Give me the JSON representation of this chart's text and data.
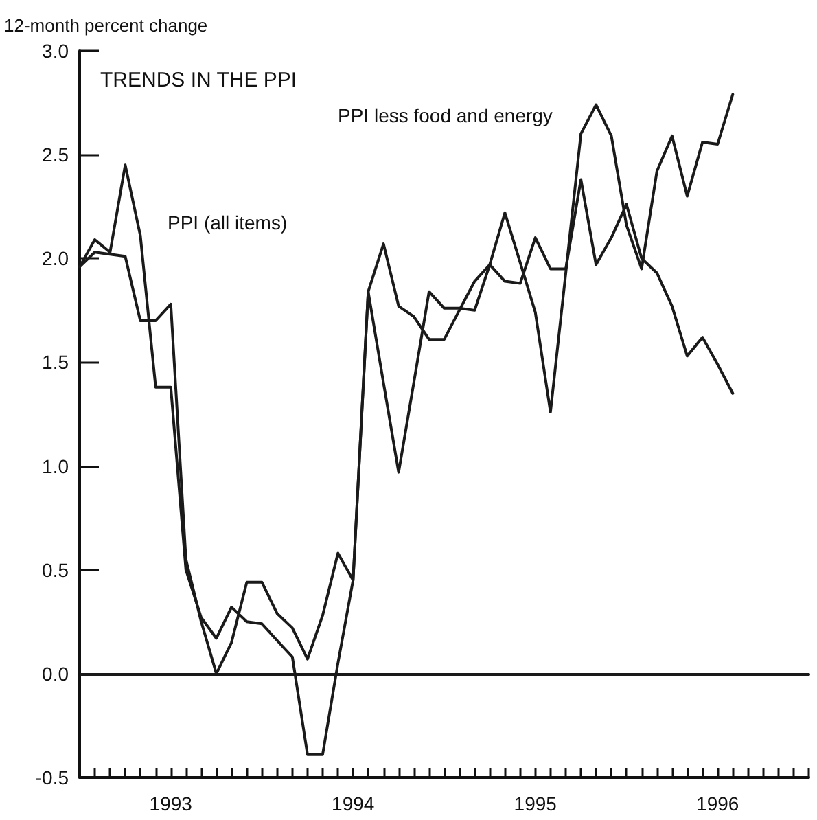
{
  "chart_data": {
    "type": "line",
    "title": "TRENDS IN THE PPI",
    "ylabel": "12-month percent change",
    "annotations": [
      "PPI less food and energy",
      "PPI (all items)"
    ],
    "x": [
      1993,
      1993.083,
      1993.167,
      1993.25,
      1993.333,
      1993.417,
      1993.5,
      1993.583,
      1993.667,
      1993.75,
      1993.833,
      1993.917,
      1994,
      1994.083,
      1994.167,
      1994.25,
      1994.333,
      1994.417,
      1994.5,
      1994.583,
      1994.667,
      1994.75,
      1994.833,
      1994.917,
      1995,
      1995.083,
      1995.167,
      1995.25,
      1995.333,
      1995.417,
      1995.5,
      1995.583,
      1995.667,
      1995.75,
      1995.833,
      1995.917,
      1996,
      1996.083,
      1996.167,
      1996.25,
      1996.333,
      1996.417,
      1996.5,
      1996.583
    ],
    "series": [
      {
        "color": "#1a1a1a",
        "values": [
          1.96,
          2.09,
          2.03,
          2.45,
          2.11,
          1.38,
          1.38,
          0.5,
          0.27,
          0.17,
          0.32,
          0.25,
          0.24,
          0.16,
          0.08,
          -0.39,
          -0.39,
          0.05,
          0.45,
          1.84,
          1.4,
          0.97,
          1.4,
          1.84,
          1.76,
          1.76,
          1.75,
          1.97,
          2.22,
          1.98,
          1.74,
          1.26,
          1.93,
          2.6,
          2.74,
          2.59,
          2.16,
          1.95,
          2.42,
          2.59,
          2.3,
          2.56,
          2.55,
          2.79
        ]
      },
      {
        "color": "#1a1a1a",
        "values": [
          1.96,
          2.03,
          2.02,
          2.01,
          1.7,
          1.7,
          1.78,
          0.55,
          0.25,
          0.0,
          0.15,
          0.44,
          0.44,
          0.29,
          0.22,
          0.07,
          0.28,
          0.58,
          0.45,
          1.84,
          2.07,
          1.77,
          1.72,
          1.61,
          1.61,
          1.75,
          1.89,
          1.97,
          1.89,
          1.88,
          2.1,
          1.95,
          1.95,
          2.38,
          1.97,
          2.1,
          2.26,
          2.0,
          1.93,
          1.77,
          1.53,
          1.62,
          1.49,
          1.35
        ]
      }
    ],
    "xlim": [
      1993,
      1997
    ],
    "xticks": [
      {
        "value": 1993,
        "label": null
      },
      {
        "value": 1993.083,
        "label": null
      },
      {
        "value": 1993.167,
        "label": null
      },
      {
        "value": 1993.25,
        "label": null
      },
      {
        "value": 1993.333,
        "label": null
      },
      {
        "value": 1993.417,
        "label": null
      },
      {
        "value": 1993.5,
        "label": "1993"
      },
      {
        "value": 1993.583,
        "label": null
      },
      {
        "value": 1993.667,
        "label": null
      },
      {
        "value": 1993.75,
        "label": null
      },
      {
        "value": 1993.833,
        "label": null
      },
      {
        "value": 1993.917,
        "label": null
      },
      {
        "value": 1994,
        "label": null
      },
      {
        "value": 1994.083,
        "label": null
      },
      {
        "value": 1994.167,
        "label": null
      },
      {
        "value": 1994.25,
        "label": null
      },
      {
        "value": 1994.333,
        "label": null
      },
      {
        "value": 1994.417,
        "label": null
      },
      {
        "value": 1994.5,
        "label": "1994"
      },
      {
        "value": 1994.583,
        "label": null
      },
      {
        "value": 1994.667,
        "label": null
      },
      {
        "value": 1994.75,
        "label": null
      },
      {
        "value": 1994.833,
        "label": null
      },
      {
        "value": 1994.917,
        "label": null
      },
      {
        "value": 1995,
        "label": null
      },
      {
        "value": 1995.083,
        "label": null
      },
      {
        "value": 1995.167,
        "label": null
      },
      {
        "value": 1995.25,
        "label": null
      },
      {
        "value": 1995.333,
        "label": null
      },
      {
        "value": 1995.417,
        "label": null
      },
      {
        "value": 1995.5,
        "label": "1995"
      },
      {
        "value": 1995.583,
        "label": null
      },
      {
        "value": 1995.667,
        "label": null
      },
      {
        "value": 1995.75,
        "label": null
      },
      {
        "value": 1995.833,
        "label": null
      },
      {
        "value": 1995.917,
        "label": null
      },
      {
        "value": 1996,
        "label": null
      },
      {
        "value": 1996.083,
        "label": null
      },
      {
        "value": 1996.167,
        "label": null
      },
      {
        "value": 1996.25,
        "label": null
      },
      {
        "value": 1996.333,
        "label": null
      },
      {
        "value": 1996.417,
        "label": null
      },
      {
        "value": 1996.5,
        "label": "1996"
      },
      {
        "value": 1996.583,
        "label": null
      },
      {
        "value": 1996.667,
        "label": null
      },
      {
        "value": 1996.75,
        "label": null
      },
      {
        "value": 1996.833,
        "label": null
      },
      {
        "value": 1996.917,
        "label": null
      },
      {
        "value": 1997,
        "label": null
      }
    ],
    "ylim": [
      -0.5,
      3
    ],
    "yticks": [
      {
        "value": -0.5,
        "label": "-0.5"
      },
      {
        "value": 0,
        "label": "0.0"
      },
      {
        "value": 0.5,
        "label": "0.5"
      },
      {
        "value": 1,
        "label": "1.0"
      },
      {
        "value": 1.5,
        "label": "1.5"
      },
      {
        "value": 2,
        "label": "2.0"
      },
      {
        "value": 2.5,
        "label": "2.5"
      },
      {
        "value": 3,
        "label": "3.0"
      }
    ],
    "ref_lines": [
      {
        "axis": "y",
        "value": 0,
        "color": "#1a1a1a",
        "line_style": "solid"
      }
    ],
    "grid": false,
    "marker": "none",
    "line_style": "solid"
  }
}
